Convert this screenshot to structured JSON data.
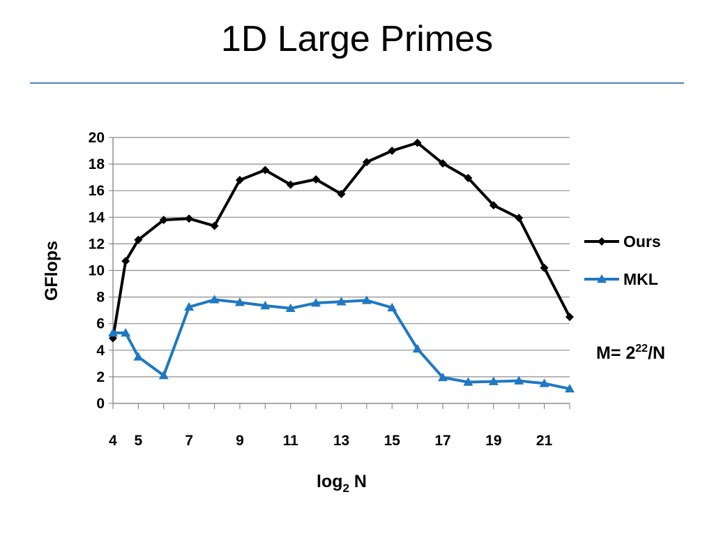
{
  "slide": {
    "title": "1D Large Primes",
    "rule_color": "#4f81bd"
  },
  "chart_data": {
    "type": "line",
    "title": "",
    "xlabel_base": "log",
    "xlabel_sub": "2",
    "xlabel_rest": " N",
    "ylabel": "GFlops",
    "xlim": [
      4,
      22
    ],
    "ylim": [
      0,
      20
    ],
    "yticks": [
      0,
      2,
      4,
      6,
      8,
      10,
      12,
      14,
      16,
      18,
      20
    ],
    "xticks": [
      4,
      5,
      7,
      9,
      11,
      13,
      15,
      17,
      19,
      21
    ],
    "x_categories": [
      4,
      5,
      6,
      7,
      8,
      9,
      10,
      11,
      12,
      13,
      14,
      15,
      16,
      17,
      18,
      19,
      20,
      21,
      22
    ],
    "grid": true,
    "legend_position": "right",
    "series": [
      {
        "name": "Ours",
        "color": "#000000",
        "marker": "diamond",
        "values": [
          4.9,
          10.7,
          12.3,
          13.8,
          13.9,
          13.35,
          16.8,
          17.55,
          16.45,
          16.85,
          15.75,
          18.15,
          19.0,
          19.6,
          18.05,
          16.95,
          14.9,
          13.95,
          10.2,
          6.5
        ]
      },
      {
        "name": "MKL",
        "color": "#1f78c1",
        "marker": "triangle",
        "values": [
          5.3,
          5.3,
          3.5,
          2.1,
          7.25,
          7.8,
          7.6,
          7.35,
          7.15,
          7.55,
          7.65,
          7.75,
          7.2,
          4.1,
          1.95,
          1.6,
          1.65,
          1.7,
          1.5,
          1.1
        ]
      }
    ],
    "x_values": [
      4,
      4.5,
      5,
      6,
      7,
      8,
      9,
      10,
      11,
      12,
      13,
      14,
      15,
      16,
      17,
      18,
      19,
      20,
      21,
      22
    ],
    "annotation": {
      "text_main": "M= 2",
      "text_sup": "22",
      "text_tail": "/N"
    }
  }
}
